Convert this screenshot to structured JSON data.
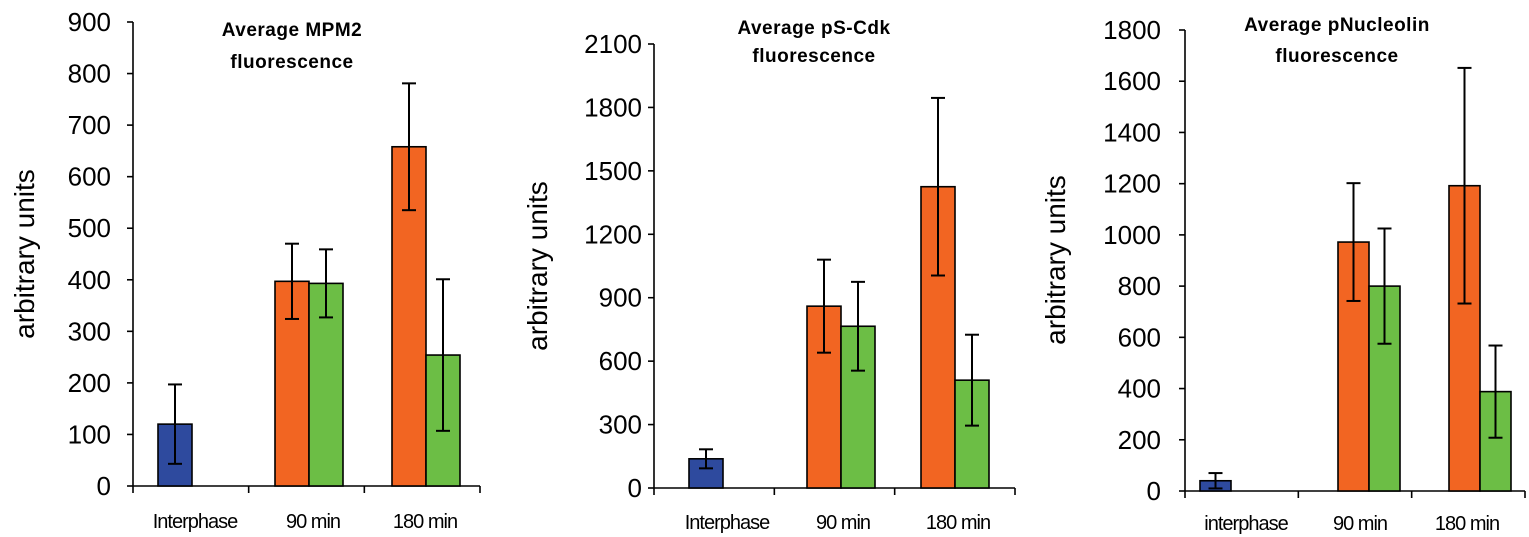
{
  "chart_data": [
    {
      "type": "bar",
      "title": [
        "Average MPM2",
        "fluorescence"
      ],
      "ylabel": "arbitrary units",
      "ylim": [
        0,
        900
      ],
      "yticks": [
        0,
        100,
        200,
        300,
        400,
        500,
        600,
        700,
        800,
        900
      ],
      "categories": [
        "Interphase",
        "90 min",
        "180 min"
      ],
      "colors": [
        "#2E4A9E",
        "#F26522",
        "#6CBE45"
      ],
      "grid": false,
      "bars": [
        {
          "category": 0,
          "slot": 0,
          "color": 0,
          "value": 120,
          "error": 77
        },
        {
          "category": 1,
          "slot": 0,
          "color": 1,
          "value": 397,
          "error": 73
        },
        {
          "category": 1,
          "slot": 1,
          "color": 2,
          "value": 393,
          "error": 66
        },
        {
          "category": 2,
          "slot": 0,
          "color": 1,
          "value": 658,
          "error": 123
        },
        {
          "category": 2,
          "slot": 1,
          "color": 2,
          "value": 254,
          "error": 147
        }
      ]
    },
    {
      "type": "bar",
      "title": [
        "Average pS-Cdk",
        "fluorescence"
      ],
      "ylabel": "arbitrary units",
      "ylim": [
        0,
        2100
      ],
      "yticks": [
        0,
        300,
        600,
        900,
        1200,
        1500,
        1800,
        2100
      ],
      "categories": [
        "Interphase",
        "90 min",
        "180 min"
      ],
      "colors": [
        "#2E4A9E",
        "#F26522",
        "#6CBE45"
      ],
      "grid": false,
      "bars": [
        {
          "category": 0,
          "slot": 0,
          "color": 0,
          "value": 138,
          "error": 45
        },
        {
          "category": 1,
          "slot": 0,
          "color": 1,
          "value": 860,
          "error": 220
        },
        {
          "category": 1,
          "slot": 1,
          "color": 2,
          "value": 765,
          "error": 210
        },
        {
          "category": 2,
          "slot": 0,
          "color": 1,
          "value": 1425,
          "error": 420
        },
        {
          "category": 2,
          "slot": 1,
          "color": 2,
          "value": 510,
          "error": 215
        }
      ]
    },
    {
      "type": "bar",
      "title": [
        "Average pNucleolin",
        "fluorescence"
      ],
      "ylabel": "arbitrary units",
      "ylim": [
        0,
        1800
      ],
      "yticks": [
        0,
        200,
        400,
        600,
        800,
        1000,
        1200,
        1400,
        1600,
        1800
      ],
      "categories": [
        "interphase",
        "90 min",
        "180 min"
      ],
      "colors": [
        "#2E4A9E",
        "#F26522",
        "#6CBE45"
      ],
      "grid": false,
      "bars": [
        {
          "category": 0,
          "slot": 0,
          "color": 0,
          "value": 40,
          "error": 30
        },
        {
          "category": 1,
          "slot": 0,
          "color": 1,
          "value": 972,
          "error": 230
        },
        {
          "category": 1,
          "slot": 1,
          "color": 2,
          "value": 800,
          "error": 225
        },
        {
          "category": 2,
          "slot": 0,
          "color": 1,
          "value": 1192,
          "error": 460
        },
        {
          "category": 2,
          "slot": 1,
          "color": 2,
          "value": 388,
          "error": 180
        }
      ]
    }
  ]
}
